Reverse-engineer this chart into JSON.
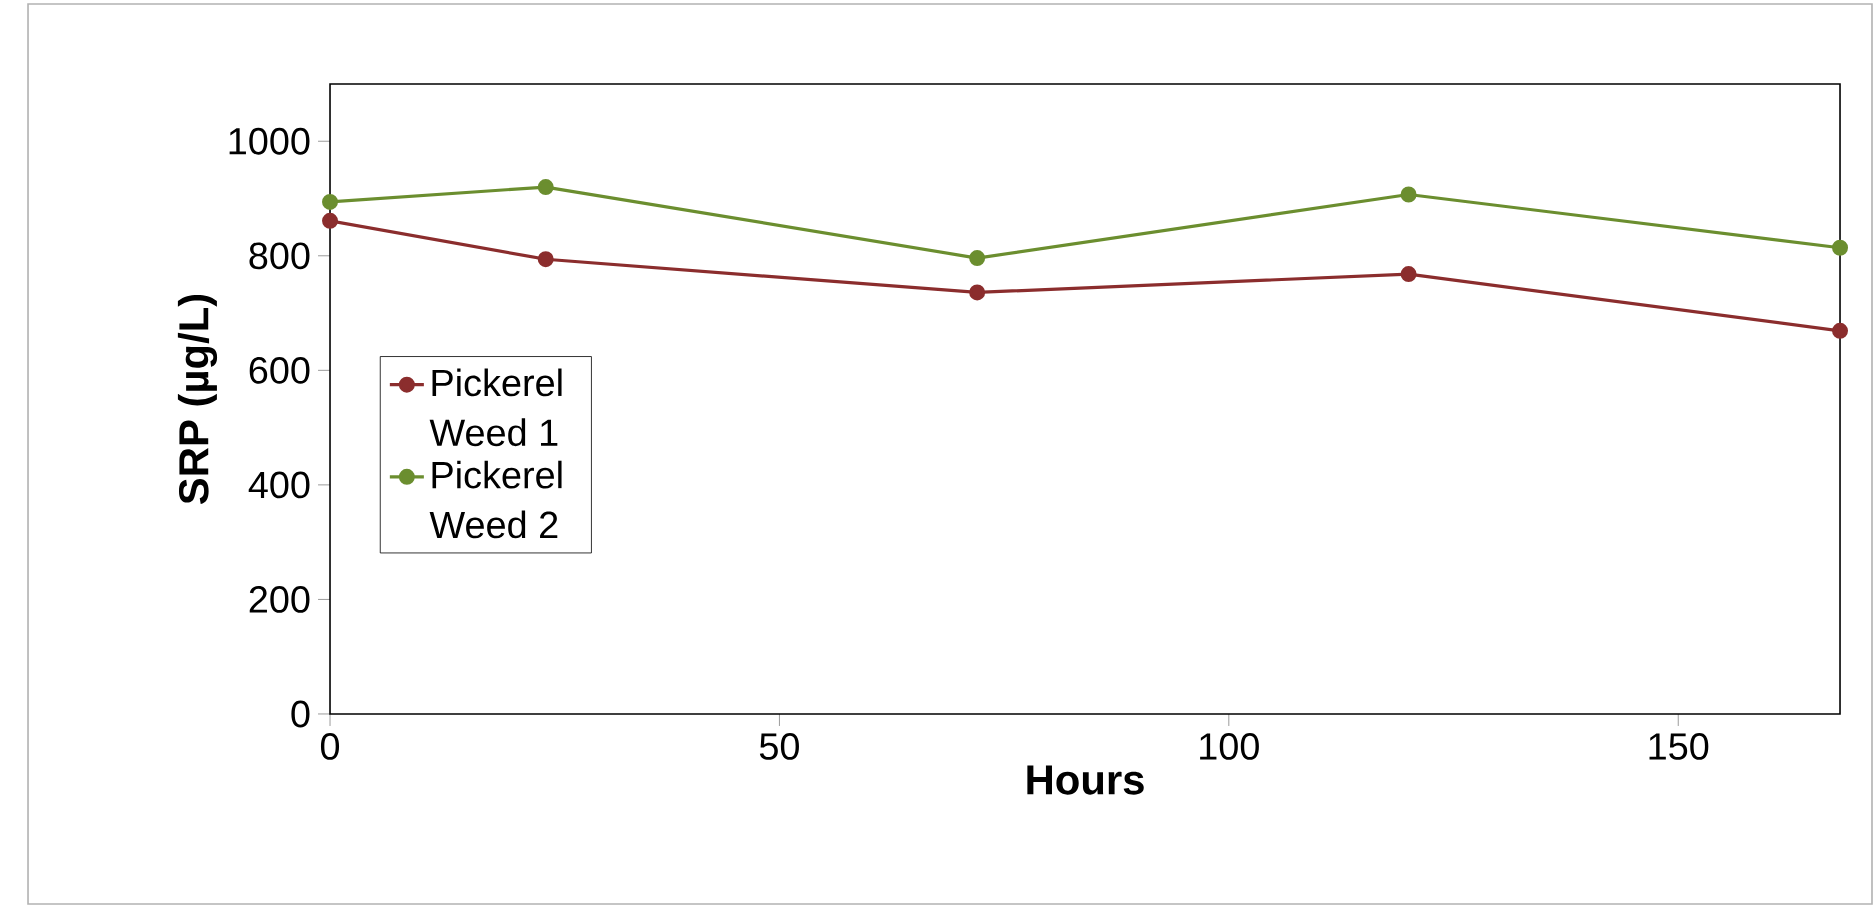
{
  "chart_data": {
    "type": "line",
    "xlabel": "Hours",
    "ylabel": "SRP (µg/L)",
    "x": [
      0,
      24,
      72,
      120,
      168
    ],
    "series": [
      {
        "name": "Pickerel Weed 1",
        "color": "#8b2d2d",
        "values": [
          861,
          794,
          736,
          768,
          669
        ]
      },
      {
        "name": "Pickerel Weed 2",
        "color": "#6b8e2f",
        "values": [
          894,
          920,
          796,
          907,
          814
        ]
      }
    ],
    "xlim": [
      0,
      168
    ],
    "ylim": [
      0,
      1100
    ],
    "xticks": [
      0,
      50,
      100,
      150
    ],
    "yticks": [
      0,
      200,
      400,
      600,
      800,
      1000
    ],
    "marker": "circle",
    "line_style": "solid",
    "legend": "left",
    "grid": false
  }
}
